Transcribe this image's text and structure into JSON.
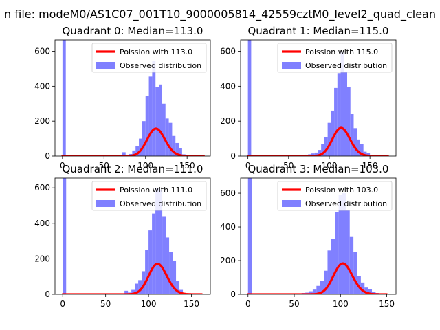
{
  "suptitle": "n file: modeM0/AS1C07_001T10_9000005814_42559cztM0_level2_quad_clean",
  "colors": {
    "poisson_line": "#ff0000",
    "histogram": "#8080ff",
    "axes": "#000000",
    "background": "#ffffff"
  },
  "legend_labels": {
    "poisson_prefix": "Poission with ",
    "observed": "Observed distribution"
  },
  "chart_data": [
    {
      "type": "bar",
      "title": "Quadrant 0: Median=113.0",
      "median": 113.0,
      "poisson_label": "Poission with 113.0",
      "observed_label": "Observed distribution",
      "legend_position": "top-right",
      "xlim": [
        -9,
        178
      ],
      "ylim": [
        0,
        665
      ],
      "xticks": [
        0,
        50,
        100,
        150
      ],
      "yticks": [
        0,
        200,
        400,
        600
      ],
      "bin_width": 4,
      "bins": [
        {
          "x": 0,
          "count": 665
        },
        {
          "x": 72,
          "count": 22
        },
        {
          "x": 76,
          "count": 8
        },
        {
          "x": 80,
          "count": 12
        },
        {
          "x": 84,
          "count": 32
        },
        {
          "x": 88,
          "count": 55
        },
        {
          "x": 92,
          "count": 100
        },
        {
          "x": 96,
          "count": 200
        },
        {
          "x": 100,
          "count": 345
        },
        {
          "x": 104,
          "count": 455
        },
        {
          "x": 108,
          "count": 545
        },
        {
          "x": 112,
          "count": 395
        },
        {
          "x": 116,
          "count": 410
        },
        {
          "x": 120,
          "count": 300
        },
        {
          "x": 124,
          "count": 215
        },
        {
          "x": 128,
          "count": 190
        },
        {
          "x": 132,
          "count": 115
        },
        {
          "x": 136,
          "count": 75
        },
        {
          "x": 140,
          "count": 45
        },
        {
          "x": 144,
          "count": 10
        }
      ],
      "poisson_range": [
        0,
        170
      ]
    },
    {
      "type": "bar",
      "title": "Quadrant 1: Median=115.0",
      "median": 115.0,
      "poisson_label": "Poission with 115.0",
      "observed_label": "Observed distribution",
      "legend_position": "top-right",
      "xlim": [
        -9,
        182
      ],
      "ylim": [
        0,
        665
      ],
      "xticks": [
        0,
        50,
        100,
        150
      ],
      "yticks": [
        0,
        200,
        400,
        600
      ],
      "bin_width": 4,
      "bins": [
        {
          "x": 0,
          "count": 665
        },
        {
          "x": 62,
          "count": 5
        },
        {
          "x": 66,
          "count": 5
        },
        {
          "x": 70,
          "count": 8
        },
        {
          "x": 74,
          "count": 10
        },
        {
          "x": 78,
          "count": 15
        },
        {
          "x": 82,
          "count": 20
        },
        {
          "x": 86,
          "count": 35
        },
        {
          "x": 90,
          "count": 70
        },
        {
          "x": 94,
          "count": 110
        },
        {
          "x": 98,
          "count": 190
        },
        {
          "x": 102,
          "count": 260
        },
        {
          "x": 106,
          "count": 390
        },
        {
          "x": 110,
          "count": 475
        },
        {
          "x": 114,
          "count": 600
        },
        {
          "x": 118,
          "count": 480
        },
        {
          "x": 122,
          "count": 395
        },
        {
          "x": 126,
          "count": 240
        },
        {
          "x": 130,
          "count": 160
        },
        {
          "x": 134,
          "count": 95
        },
        {
          "x": 138,
          "count": 70
        },
        {
          "x": 142,
          "count": 25
        },
        {
          "x": 146,
          "count": 18
        }
      ],
      "poisson_range": [
        0,
        172
      ]
    },
    {
      "type": "bar",
      "title": "Quadrant 2: Median=111.0",
      "median": 111.0,
      "poisson_label": "Poission with 111.0",
      "observed_label": "Observed distribution",
      "legend_position": "top-right",
      "xlim": [
        -9,
        172
      ],
      "ylim": [
        0,
        655
      ],
      "xticks": [
        0,
        50,
        100,
        150
      ],
      "yticks": [
        0,
        200,
        400,
        600
      ],
      "bin_width": 4,
      "bins": [
        {
          "x": 0,
          "count": 655
        },
        {
          "x": 68,
          "count": 5
        },
        {
          "x": 72,
          "count": 20
        },
        {
          "x": 76,
          "count": 10
        },
        {
          "x": 80,
          "count": 25
        },
        {
          "x": 84,
          "count": 60
        },
        {
          "x": 88,
          "count": 80
        },
        {
          "x": 92,
          "count": 130
        },
        {
          "x": 96,
          "count": 250
        },
        {
          "x": 100,
          "count": 360
        },
        {
          "x": 104,
          "count": 455
        },
        {
          "x": 108,
          "count": 600
        },
        {
          "x": 112,
          "count": 590
        },
        {
          "x": 116,
          "count": 440
        },
        {
          "x": 120,
          "count": 320
        },
        {
          "x": 124,
          "count": 240
        },
        {
          "x": 128,
          "count": 190
        },
        {
          "x": 132,
          "count": 75
        },
        {
          "x": 136,
          "count": 25
        },
        {
          "x": 140,
          "count": 8
        }
      ],
      "poisson_range": [
        0,
        162
      ]
    },
    {
      "type": "bar",
      "title": "Quadrant 3: Median=103.0",
      "median": 103.0,
      "poisson_label": "Poission with 103.0",
      "observed_label": "Observed distribution",
      "legend_position": "top-right",
      "xlim": [
        -8,
        160
      ],
      "ylim": [
        0,
        690
      ],
      "xticks": [
        0,
        50,
        100,
        150
      ],
      "yticks": [
        0,
        200,
        400,
        600
      ],
      "bin_width": 4,
      "bins": [
        {
          "x": 0,
          "count": 690
        },
        {
          "x": 54,
          "count": 5
        },
        {
          "x": 58,
          "count": 8
        },
        {
          "x": 62,
          "count": 10
        },
        {
          "x": 66,
          "count": 18
        },
        {
          "x": 70,
          "count": 28
        },
        {
          "x": 74,
          "count": 50
        },
        {
          "x": 78,
          "count": 80
        },
        {
          "x": 82,
          "count": 140
        },
        {
          "x": 86,
          "count": 260
        },
        {
          "x": 90,
          "count": 330
        },
        {
          "x": 94,
          "count": 490
        },
        {
          "x": 98,
          "count": 590
        },
        {
          "x": 102,
          "count": 600
        },
        {
          "x": 106,
          "count": 500
        },
        {
          "x": 110,
          "count": 340
        },
        {
          "x": 114,
          "count": 250
        },
        {
          "x": 118,
          "count": 110
        },
        {
          "x": 122,
          "count": 70
        },
        {
          "x": 126,
          "count": 40
        },
        {
          "x": 130,
          "count": 30
        },
        {
          "x": 134,
          "count": 15
        },
        {
          "x": 138,
          "count": 8
        }
      ],
      "poisson_range": [
        0,
        150
      ]
    }
  ]
}
